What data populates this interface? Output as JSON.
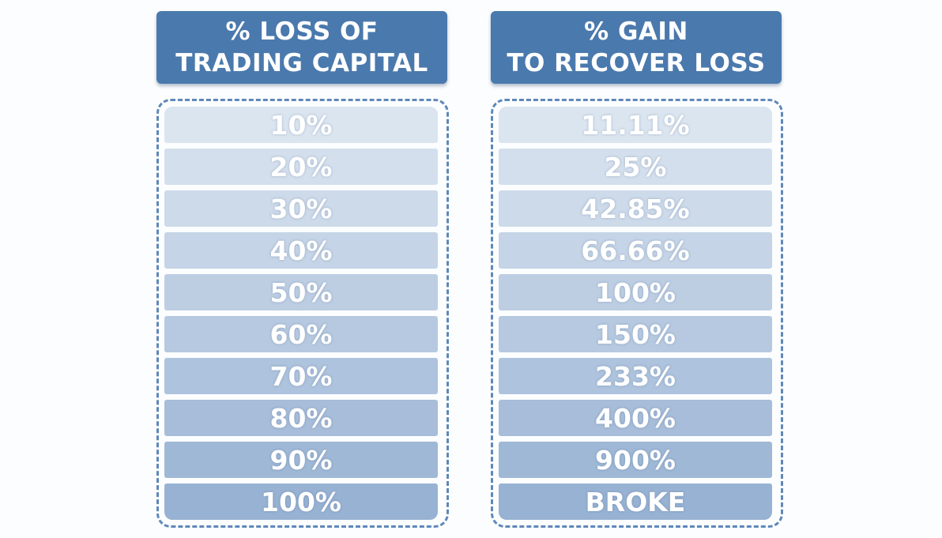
{
  "columns": [
    {
      "header": [
        "% LOSS OF",
        "TRADING CAPITAL"
      ],
      "rows": [
        "10%",
        "20%",
        "30%",
        "40%",
        "50%",
        "60%",
        "70%",
        "80%",
        "90%",
        "100%"
      ]
    },
    {
      "header": [
        "% GAIN",
        "TO RECOVER LOSS"
      ],
      "rows": [
        "11.11%",
        "25%",
        "42.85%",
        "66.66%",
        "100%",
        "150%",
        "233%",
        "400%",
        "900%",
        "BROKE"
      ]
    }
  ]
}
